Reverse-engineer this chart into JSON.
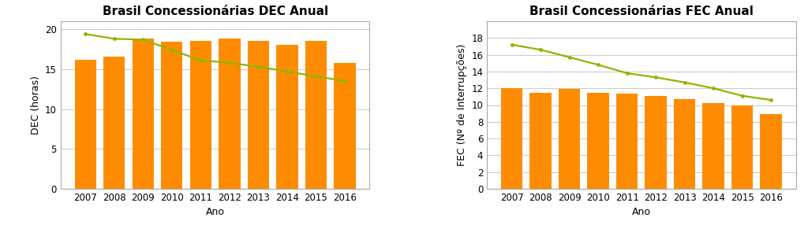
{
  "years": [
    2007,
    2008,
    2009,
    2010,
    2011,
    2012,
    2013,
    2014,
    2015,
    2016
  ],
  "dec_bars": [
    16.2,
    16.6,
    18.8,
    18.4,
    18.5,
    18.8,
    18.5,
    18.0,
    18.5,
    15.8
  ],
  "dec_line": [
    19.4,
    18.8,
    18.7,
    17.4,
    16.1,
    15.8,
    15.3,
    14.7,
    14.1,
    13.5
  ],
  "fec_bars": [
    12.0,
    11.5,
    11.9,
    11.5,
    11.4,
    11.1,
    10.7,
    10.2,
    10.0,
    8.9
  ],
  "fec_line": [
    17.2,
    16.6,
    15.7,
    14.8,
    13.8,
    13.3,
    12.7,
    12.0,
    11.1,
    10.6
  ],
  "bar_color": "#FF8C00",
  "line_color": "#8DB600",
  "dec_title": "Brasil Concessionárias DEC Anual",
  "fec_title": "Brasil Concessionárias FEC Anual",
  "dec_ylabel": "DEC (horas)",
  "fec_ylabel": "FEC (Nº de Interrupções)",
  "xlabel": "Ano",
  "dec_ylim": [
    0,
    21
  ],
  "fec_ylim": [
    0,
    20
  ],
  "dec_yticks": [
    0,
    5,
    10,
    15,
    20
  ],
  "fec_yticks": [
    0,
    2,
    4,
    6,
    8,
    10,
    12,
    14,
    16,
    18
  ],
  "plot_bg_color": "#ffffff",
  "fig_bg_color": "#ffffff",
  "grid_color": "#cccccc",
  "spine_color": "#aaaaaa",
  "title_fontsize": 11,
  "axis_fontsize": 9,
  "tick_fontsize": 8.5,
  "bar_width": 0.75
}
